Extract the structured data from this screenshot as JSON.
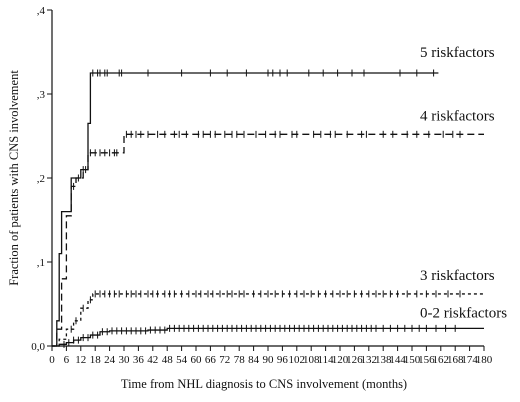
{
  "chart_data": {
    "type": "line",
    "subtype": "kaplan-meier step curves with censoring ticks",
    "title": "",
    "xlabel": "Time from NHL diagnosis to CNS involvement (months)",
    "ylabel": "Fraction of patients with CNS involvement",
    "xlim": [
      0,
      180
    ],
    "ylim": [
      0,
      0.4
    ],
    "x_ticks": [
      0,
      6,
      12,
      18,
      24,
      30,
      36,
      42,
      48,
      54,
      60,
      66,
      72,
      78,
      84,
      90,
      96,
      102,
      108,
      114,
      120,
      126,
      132,
      138,
      144,
      150,
      156,
      162,
      168,
      174,
      180
    ],
    "y_ticks": [
      {
        "value": 0,
        "label": "0,0"
      },
      {
        "value": 0.1,
        "label": ",1"
      },
      {
        "value": 0.2,
        "label": ",2"
      },
      {
        "value": 0.3,
        "label": ",3"
      },
      {
        "value": 0.4,
        "label": ",4"
      }
    ],
    "grid": false,
    "legend": "labels placed at right end of each curve",
    "series": [
      {
        "name": "5 riskfactors",
        "style": "solid",
        "points": [
          [
            0,
            0
          ],
          [
            2,
            0.03
          ],
          [
            3,
            0.11
          ],
          [
            4,
            0.16
          ],
          [
            7,
            0.16
          ],
          [
            8,
            0.2
          ],
          [
            12,
            0.21
          ],
          [
            15,
            0.265
          ],
          [
            16,
            0.325
          ],
          [
            161,
            0.325
          ]
        ],
        "censored": [
          13,
          14,
          17,
          19,
          20,
          22,
          23,
          28,
          29,
          40,
          54,
          66,
          73,
          81,
          90,
          92,
          95,
          98,
          107,
          113,
          119,
          125,
          130,
          145,
          152,
          159
        ]
      },
      {
        "name": "4 riskfactors",
        "style": "dashed",
        "points": [
          [
            0,
            0
          ],
          [
            2,
            0.02
          ],
          [
            4,
            0.08
          ],
          [
            6,
            0.155
          ],
          [
            8,
            0.19
          ],
          [
            10,
            0.2
          ],
          [
            13,
            0.21
          ],
          [
            15,
            0.23
          ],
          [
            29,
            0.23
          ],
          [
            30,
            0.252
          ],
          [
            180,
            0.252
          ]
        ],
        "censored": [
          9,
          11,
          16,
          18,
          20,
          22,
          24,
          26,
          27,
          31,
          33,
          35,
          37,
          40,
          44,
          47,
          51,
          53,
          56,
          61,
          63,
          66,
          68,
          72,
          75,
          77,
          80,
          85,
          89,
          93,
          95,
          100,
          102,
          109,
          112,
          116,
          118,
          123,
          129,
          131,
          138,
          142,
          148,
          152,
          157,
          163,
          167,
          170
        ]
      },
      {
        "name": "3 riskfactors",
        "style": "dotted",
        "points": [
          [
            0,
            0
          ],
          [
            3,
            0.008
          ],
          [
            6,
            0.02
          ],
          [
            9,
            0.03
          ],
          [
            12,
            0.045
          ],
          [
            15,
            0.055
          ],
          [
            17,
            0.062
          ],
          [
            180,
            0.062
          ]
        ],
        "censored": [
          8,
          10,
          13,
          16,
          18,
          20,
          22,
          24,
          26,
          28,
          31,
          33,
          35,
          37,
          40,
          42,
          44,
          47,
          49,
          51,
          54,
          57,
          60,
          62,
          65,
          67,
          70,
          73,
          75,
          78,
          80,
          84,
          87,
          90,
          93,
          96,
          99,
          102,
          105,
          108,
          111,
          114,
          117,
          120,
          123,
          126,
          129,
          132,
          135,
          138,
          141,
          144,
          148,
          152,
          156,
          160,
          165,
          170
        ]
      },
      {
        "name": "0-2 riskfactors",
        "style": "solid",
        "points": [
          [
            0,
            0
          ],
          [
            3,
            0.002
          ],
          [
            6,
            0.004
          ],
          [
            9,
            0.007
          ],
          [
            12,
            0.01
          ],
          [
            16,
            0.013
          ],
          [
            20,
            0.017
          ],
          [
            24,
            0.018
          ],
          [
            40,
            0.019
          ],
          [
            48,
            0.021
          ],
          [
            180,
            0.021
          ]
        ],
        "censored": [
          5,
          7,
          9,
          11,
          13,
          15,
          17,
          19,
          21,
          23,
          25,
          27,
          29,
          31,
          33,
          35,
          37,
          39,
          41,
          43,
          45,
          47,
          49,
          51,
          53,
          55,
          57,
          59,
          61,
          63,
          65,
          67,
          69,
          71,
          73,
          75,
          77,
          79,
          81,
          83,
          85,
          87,
          89,
          91,
          93,
          95,
          97,
          99,
          101,
          103,
          105,
          107,
          109,
          111,
          113,
          115,
          117,
          119,
          121,
          123,
          125,
          127,
          129,
          131,
          133,
          135,
          138,
          141,
          144,
          147,
          150,
          153,
          156,
          160,
          164,
          168
        ]
      }
    ]
  }
}
